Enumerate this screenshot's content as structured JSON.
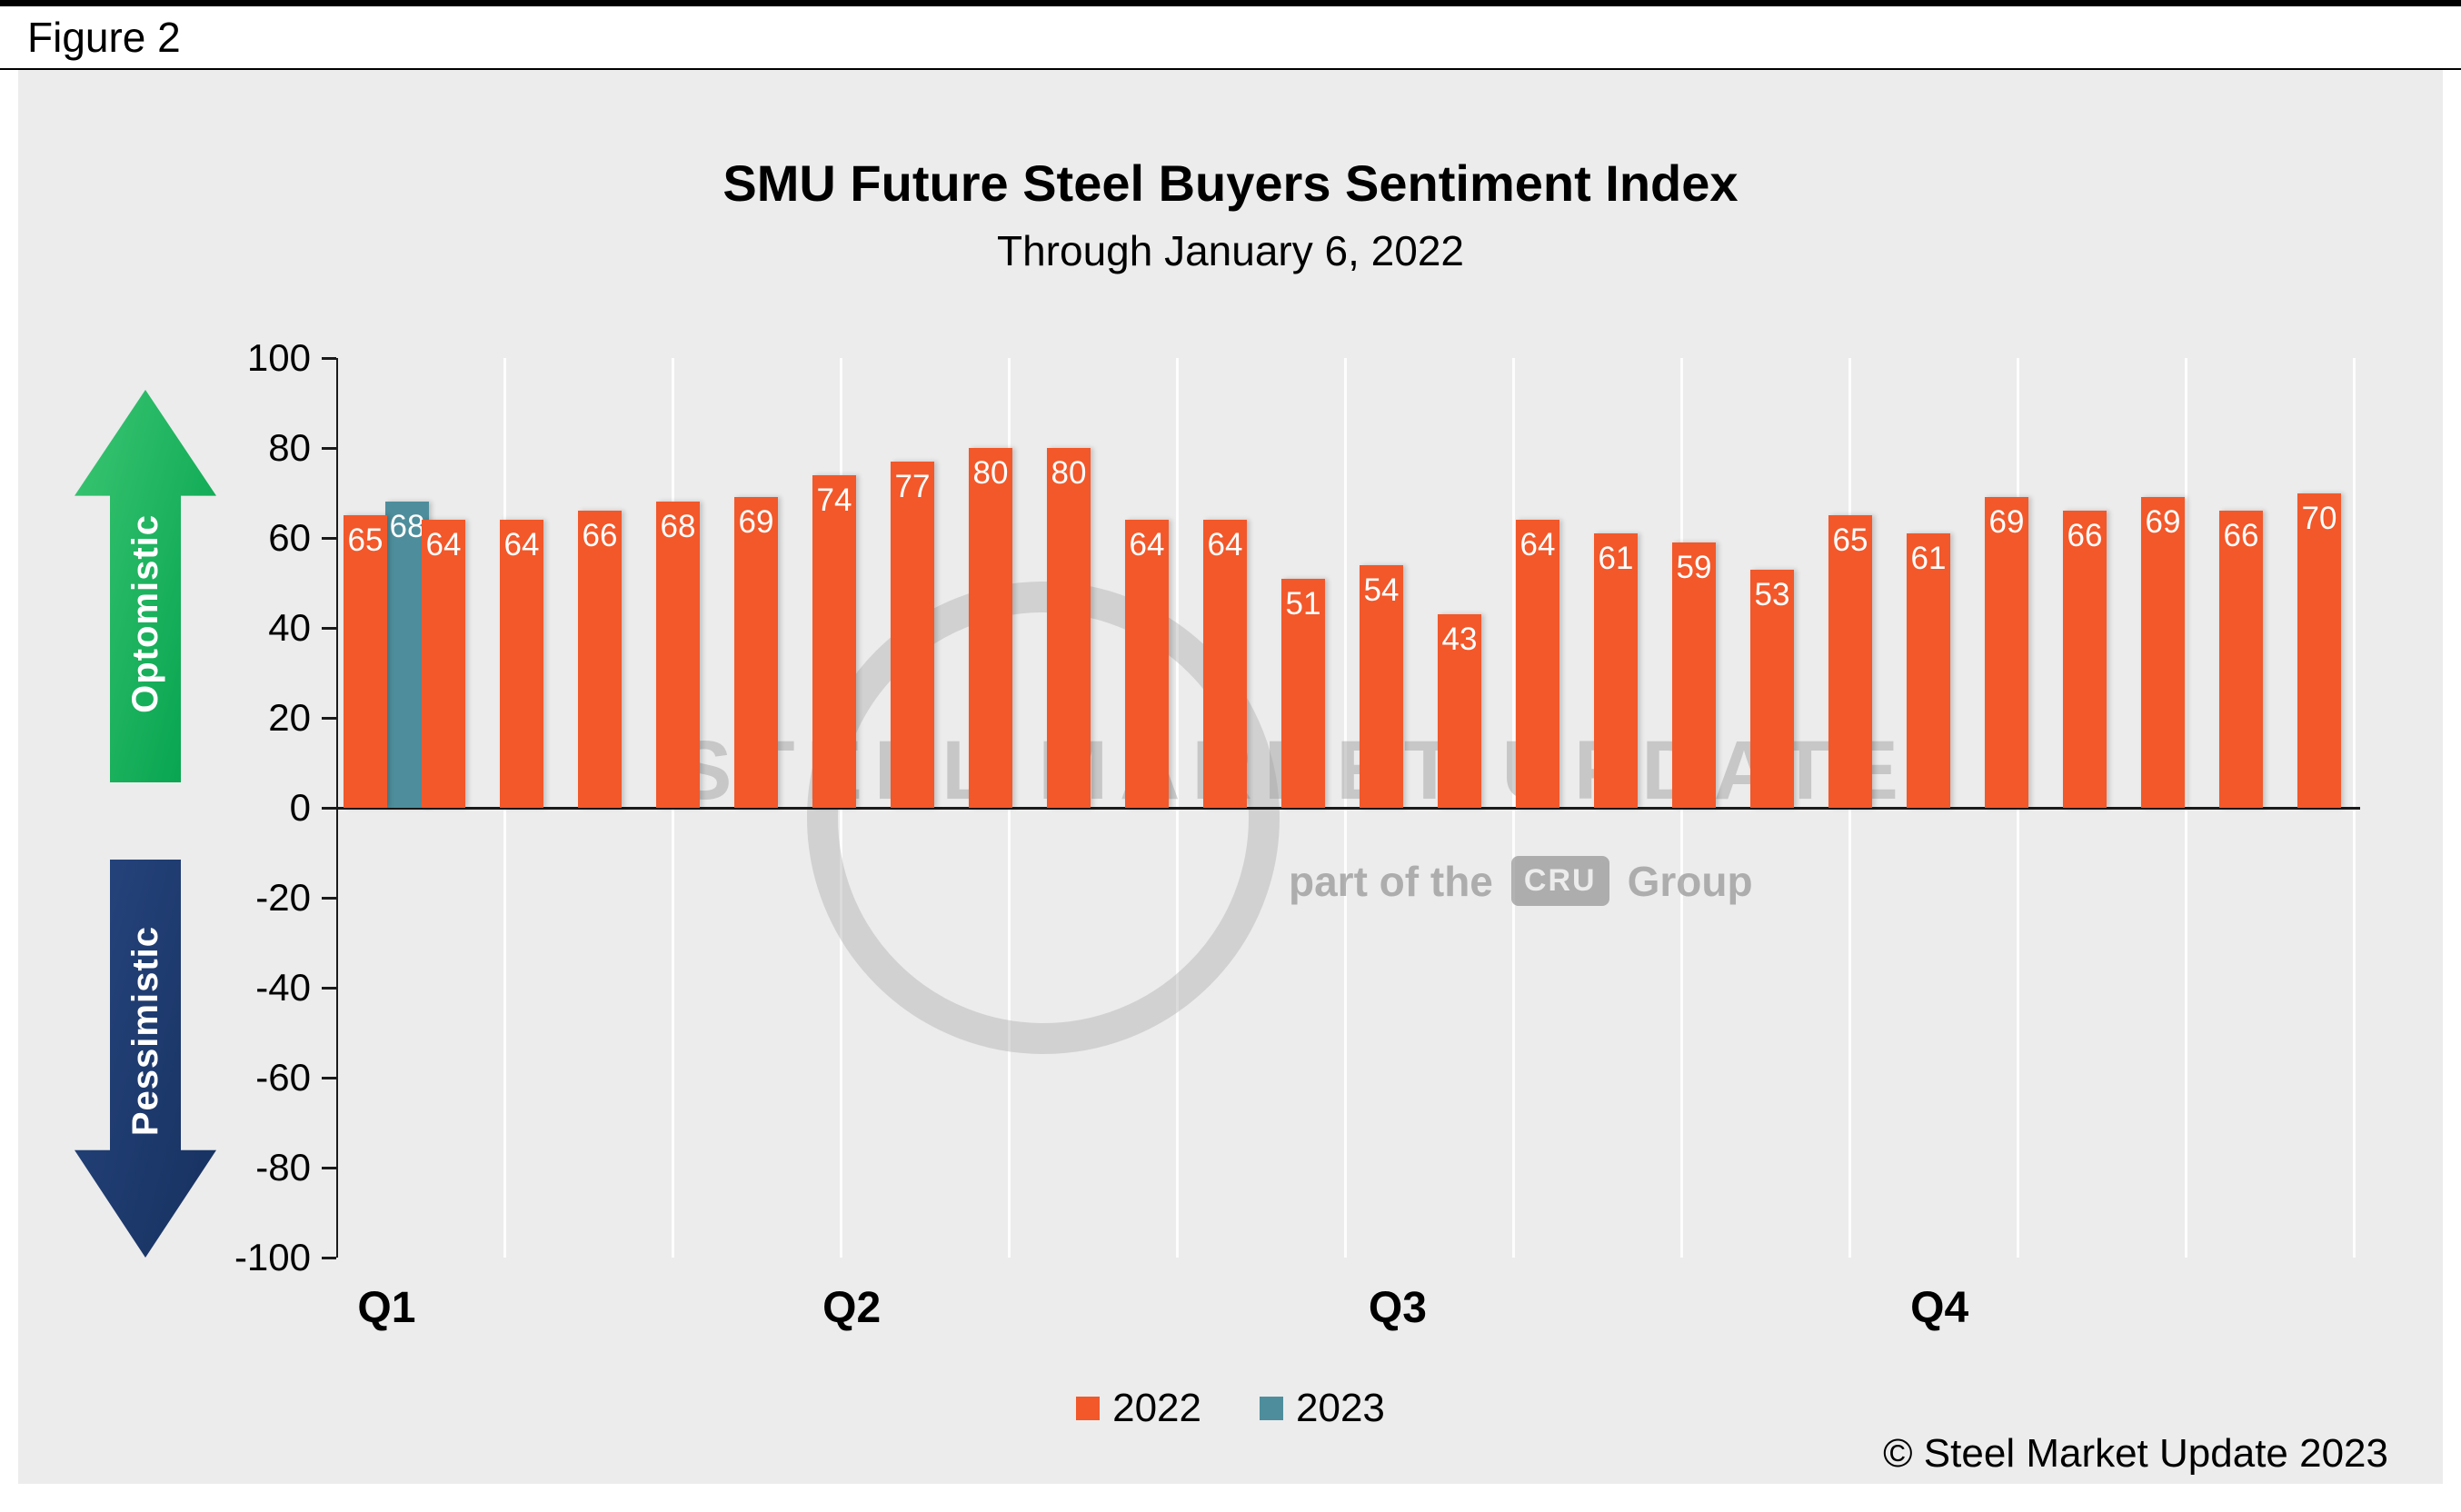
{
  "figure_label": "Figure 2",
  "title": "SMU Future Steel Buyers Sentiment Index",
  "subtitle": "Through January 6, 2022",
  "annotations": {
    "up": "Optomistic",
    "down": "Pessimistic"
  },
  "watermark": {
    "line1": "STEEL MARKET UPDATE",
    "part_prefix": "part of the",
    "cru": "CRU",
    "part_suffix": "Group"
  },
  "legend": [
    {
      "label": "2022",
      "color": "#F2582A"
    },
    {
      "label": "2023",
      "color": "#4E8E9C"
    }
  ],
  "copyright": "© Steel Market Update 2023",
  "colors": {
    "panel_bg": "#ECECEC",
    "optimistic_green": "#00A04B",
    "pessimistic_navy": "#1C3667",
    "axis": "#1A1A1A",
    "bar_2022": "#F2582A",
    "bar_2023": "#4E8E9C"
  },
  "chart_data": {
    "type": "bar",
    "title": "SMU Future Steel Buyers Sentiment Index",
    "subtitle": "Through January 6, 2022",
    "ylim": [
      -100,
      100
    ],
    "yticks": [
      100,
      80,
      60,
      40,
      20,
      0,
      -20,
      -40,
      -60,
      -80,
      -100
    ],
    "xticks": [
      "Q1",
      "Q2",
      "Q3",
      "Q4"
    ],
    "xtick_pos_pct": [
      2.4,
      25.4,
      52.4,
      79.2
    ],
    "grid": "vertical",
    "legend_position": "bottom",
    "series_colors": {
      "2022": "#F2582A",
      "2023": "#4E8E9C"
    },
    "bars": [
      {
        "series": "2022",
        "value": 65
      },
      {
        "series": "2023",
        "value": 68
      },
      {
        "series": "2022",
        "value": 64
      },
      {
        "series": "2022",
        "value": 64
      },
      {
        "series": "2022",
        "value": 66
      },
      {
        "series": "2022",
        "value": 68
      },
      {
        "series": "2022",
        "value": 69
      },
      {
        "series": "2022",
        "value": 74
      },
      {
        "series": "2022",
        "value": 77
      },
      {
        "series": "2022",
        "value": 80
      },
      {
        "series": "2022",
        "value": 80
      },
      {
        "series": "2022",
        "value": 64
      },
      {
        "series": "2022",
        "value": 64
      },
      {
        "series": "2022",
        "value": 51
      },
      {
        "series": "2022",
        "value": 54
      },
      {
        "series": "2022",
        "value": 43
      },
      {
        "series": "2022",
        "value": 64
      },
      {
        "series": "2022",
        "value": 61
      },
      {
        "series": "2022",
        "value": 59
      },
      {
        "series": "2022",
        "value": 53
      },
      {
        "series": "2022",
        "value": 65
      },
      {
        "series": "2022",
        "value": 61
      },
      {
        "series": "2022",
        "value": 69
      },
      {
        "series": "2022",
        "value": 66
      },
      {
        "series": "2022",
        "value": 69
      },
      {
        "series": "2022",
        "value": 66
      },
      {
        "series": "2022",
        "value": 70
      }
    ]
  }
}
